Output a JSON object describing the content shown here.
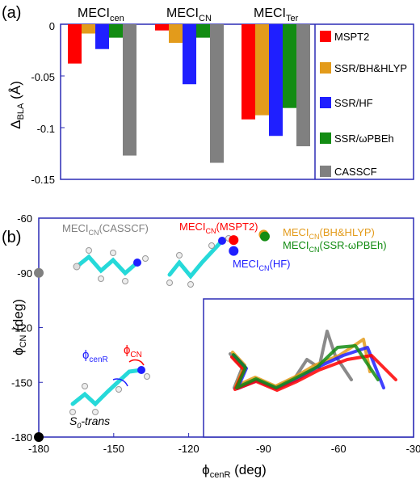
{
  "chart_data": [
    {
      "type": "bar",
      "panel_label": "(a)",
      "ylabel_main": "Δ",
      "ylabel_sub": "BLA",
      "ylabel_unit": " (Å)",
      "ylim": [
        -0.15,
        0
      ],
      "yticks": [
        "0",
        "-0.05",
        "-0.1",
        "-0.15"
      ],
      "ytick_values": [
        0,
        -0.05,
        -0.1,
        -0.15
      ],
      "categories": [
        {
          "main": "MECI",
          "sub": "cen"
        },
        {
          "main": "MECI",
          "sub": "CN"
        },
        {
          "main": "MECI",
          "sub": "Ter"
        }
      ],
      "series": [
        {
          "name": "MSPT2",
          "color": "#ff0000",
          "values": [
            -0.038,
            -0.006,
            -0.092
          ]
        },
        {
          "name": "SSR/BH&HLYP",
          "color": "#e39b1b",
          "values": [
            -0.009,
            -0.018,
            -0.088
          ]
        },
        {
          "name": "SSR/HF",
          "color": "#1f1fff",
          "values": [
            -0.024,
            -0.058,
            -0.108
          ]
        },
        {
          "name": "SSR/ωPBEh",
          "color": "#138c13",
          "values": [
            -0.013,
            -0.013,
            -0.081
          ]
        },
        {
          "name": "CASSCF",
          "color": "#808080",
          "values": [
            -0.127,
            -0.134,
            -0.118
          ]
        }
      ]
    },
    {
      "type": "scatter",
      "panel_label": "(b)",
      "xlabel_main": "ϕ",
      "xlabel_sub": "cenR",
      "xlabel_unit": " (deg)",
      "ylabel_main": "ϕ",
      "ylabel_sub": "CN",
      "ylabel_unit": " (deg)",
      "xlim": [
        -180,
        -30
      ],
      "ylim": [
        -180,
        -60
      ],
      "xticks": [
        "-180",
        "-150",
        "-120",
        "-90",
        "-60",
        "-30"
      ],
      "xtick_values": [
        -180,
        -150,
        -120,
        -90,
        -60,
        -30
      ],
      "yticks": [
        "-60",
        "-90",
        "-120",
        "-150",
        "-180"
      ],
      "ytick_values": [
        -60,
        -90,
        -120,
        -150,
        -180
      ],
      "points": [
        {
          "label": "S0-trans",
          "x": -180,
          "y": -180,
          "color": "#000000"
        },
        {
          "label": "MECI_CN(CASSCF)",
          "x": -180,
          "y": -90,
          "color": "#808080"
        },
        {
          "label": "MECI_CN(MSPT2)",
          "x": -102,
          "y": -72,
          "color": "#ff0000"
        },
        {
          "label": "MECI_CN(HF)",
          "x": -102,
          "y": -78,
          "color": "#1f1fff"
        },
        {
          "label": "MECI_CN(BH&HLYP)",
          "x": -90,
          "y": -69,
          "color": "#e39b1b"
        },
        {
          "label": "MECI_CN(SSR-ωPBEh)",
          "x": -89.5,
          "y": -70,
          "color": "#138c13"
        }
      ],
      "annotations": {
        "casscf": {
          "main": "MECI",
          "sub": "CN",
          "tail": "(CASSCF)",
          "color": "#808080"
        },
        "mspt2": {
          "main": "MECI",
          "sub": "CN",
          "tail": "(MSPT2)",
          "color": "#ff0000"
        },
        "hf": {
          "main": "MECI",
          "sub": "CN",
          "tail": "(HF)",
          "color": "#1f1fff"
        },
        "bhhlyp": {
          "main": "MECI",
          "sub": "CN",
          "tail": "(BH&HLYP)",
          "color": "#e39b1b"
        },
        "wpbeh": {
          "main": "MECI",
          "sub": "CN",
          "tail": "(SSR-ωPBEh)",
          "color": "#138c13"
        },
        "strans": {
          "main": "S",
          "sub": "0",
          "tail": "-trans",
          "color": "#000000"
        },
        "phi_cenr": {
          "main": "ϕ",
          "sub": "cenR",
          "color": "#1f1fff"
        },
        "phi_cn": {
          "main": "ϕ",
          "sub": "CN",
          "color": "#ff0000"
        }
      }
    }
  ]
}
